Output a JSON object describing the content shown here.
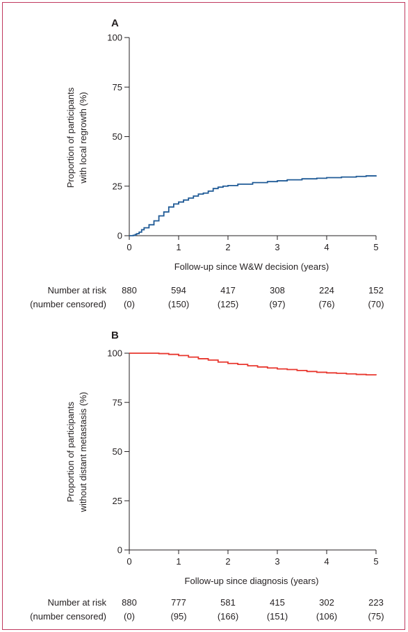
{
  "chart_data": [
    {
      "type": "line",
      "panel_label": "A",
      "xlabel": "Follow-up since W&W decision (years)",
      "ylabel_line1": "Proportion of participants",
      "ylabel_line2": "with local regrowth (%)",
      "xlim": [
        0,
        5
      ],
      "ylim": [
        0,
        100
      ],
      "x_ticks": [
        "0",
        "1",
        "2",
        "3",
        "4",
        "5"
      ],
      "y_ticks": [
        "0",
        "25",
        "50",
        "75",
        "100"
      ],
      "grid": false,
      "colors": {
        "line": "#1f5a96"
      },
      "series": [
        {
          "step": true,
          "x": [
            0,
            0.08,
            0.12,
            0.15,
            0.2,
            0.25,
            0.3,
            0.4,
            0.5,
            0.6,
            0.7,
            0.8,
            0.9,
            1.0,
            1.1,
            1.2,
            1.3,
            1.4,
            1.5,
            1.6,
            1.7,
            1.8,
            1.9,
            2.0,
            2.2,
            2.5,
            2.8,
            3.0,
            3.2,
            3.5,
            3.8,
            4.0,
            4.3,
            4.6,
            4.8,
            5.0
          ],
          "y": [
            0,
            0.2,
            0.6,
            1.0,
            1.8,
            3.0,
            4.0,
            5.5,
            7.5,
            10.0,
            12.0,
            14.5,
            16.0,
            17.0,
            18.0,
            19.0,
            20.0,
            21.0,
            21.5,
            22.5,
            23.8,
            24.5,
            25.0,
            25.3,
            26.0,
            26.8,
            27.3,
            27.7,
            28.2,
            28.7,
            29.0,
            29.3,
            29.6,
            29.9,
            30.2,
            30.5
          ]
        }
      ],
      "risk_table": {
        "row1_label": "Number at risk",
        "row2_label": "(number censored)",
        "at_risk": [
          "880",
          "594",
          "417",
          "308",
          "224",
          "152"
        ],
        "censored": [
          "(0)",
          "(150)",
          "(125)",
          "(97)",
          "(76)",
          "(70)"
        ]
      }
    },
    {
      "type": "line",
      "panel_label": "B",
      "xlabel": "Follow-up since diagnosis (years)",
      "ylabel_line1": "Proportion of participants",
      "ylabel_line2": "without distant metastasis (%)",
      "xlim": [
        0,
        5
      ],
      "ylim": [
        0,
        100
      ],
      "x_ticks": [
        "0",
        "1",
        "2",
        "3",
        "4",
        "5"
      ],
      "y_ticks": [
        "0",
        "25",
        "50",
        "75",
        "100"
      ],
      "grid": false,
      "colors": {
        "line": "#e8362d"
      },
      "series": [
        {
          "step": true,
          "x": [
            0,
            0.3,
            0.6,
            0.8,
            1.0,
            1.2,
            1.4,
            1.6,
            1.8,
            2.0,
            2.2,
            2.4,
            2.6,
            2.8,
            3.0,
            3.2,
            3.4,
            3.6,
            3.8,
            4.0,
            4.2,
            4.4,
            4.6,
            4.8,
            5.0
          ],
          "y": [
            100,
            100,
            99.8,
            99.4,
            98.8,
            98.0,
            97.2,
            96.5,
            95.5,
            94.8,
            94.3,
            93.6,
            93.0,
            92.5,
            92.0,
            91.7,
            91.2,
            90.7,
            90.3,
            90.0,
            89.8,
            89.5,
            89.2,
            89.0,
            88.8
          ]
        }
      ],
      "risk_table": {
        "row1_label": "Number at risk",
        "row2_label": "(number censored)",
        "at_risk": [
          "880",
          "777",
          "581",
          "415",
          "302",
          "223"
        ],
        "censored": [
          "(0)",
          "(95)",
          "(166)",
          "(151)",
          "(106)",
          "(75)"
        ]
      }
    }
  ]
}
